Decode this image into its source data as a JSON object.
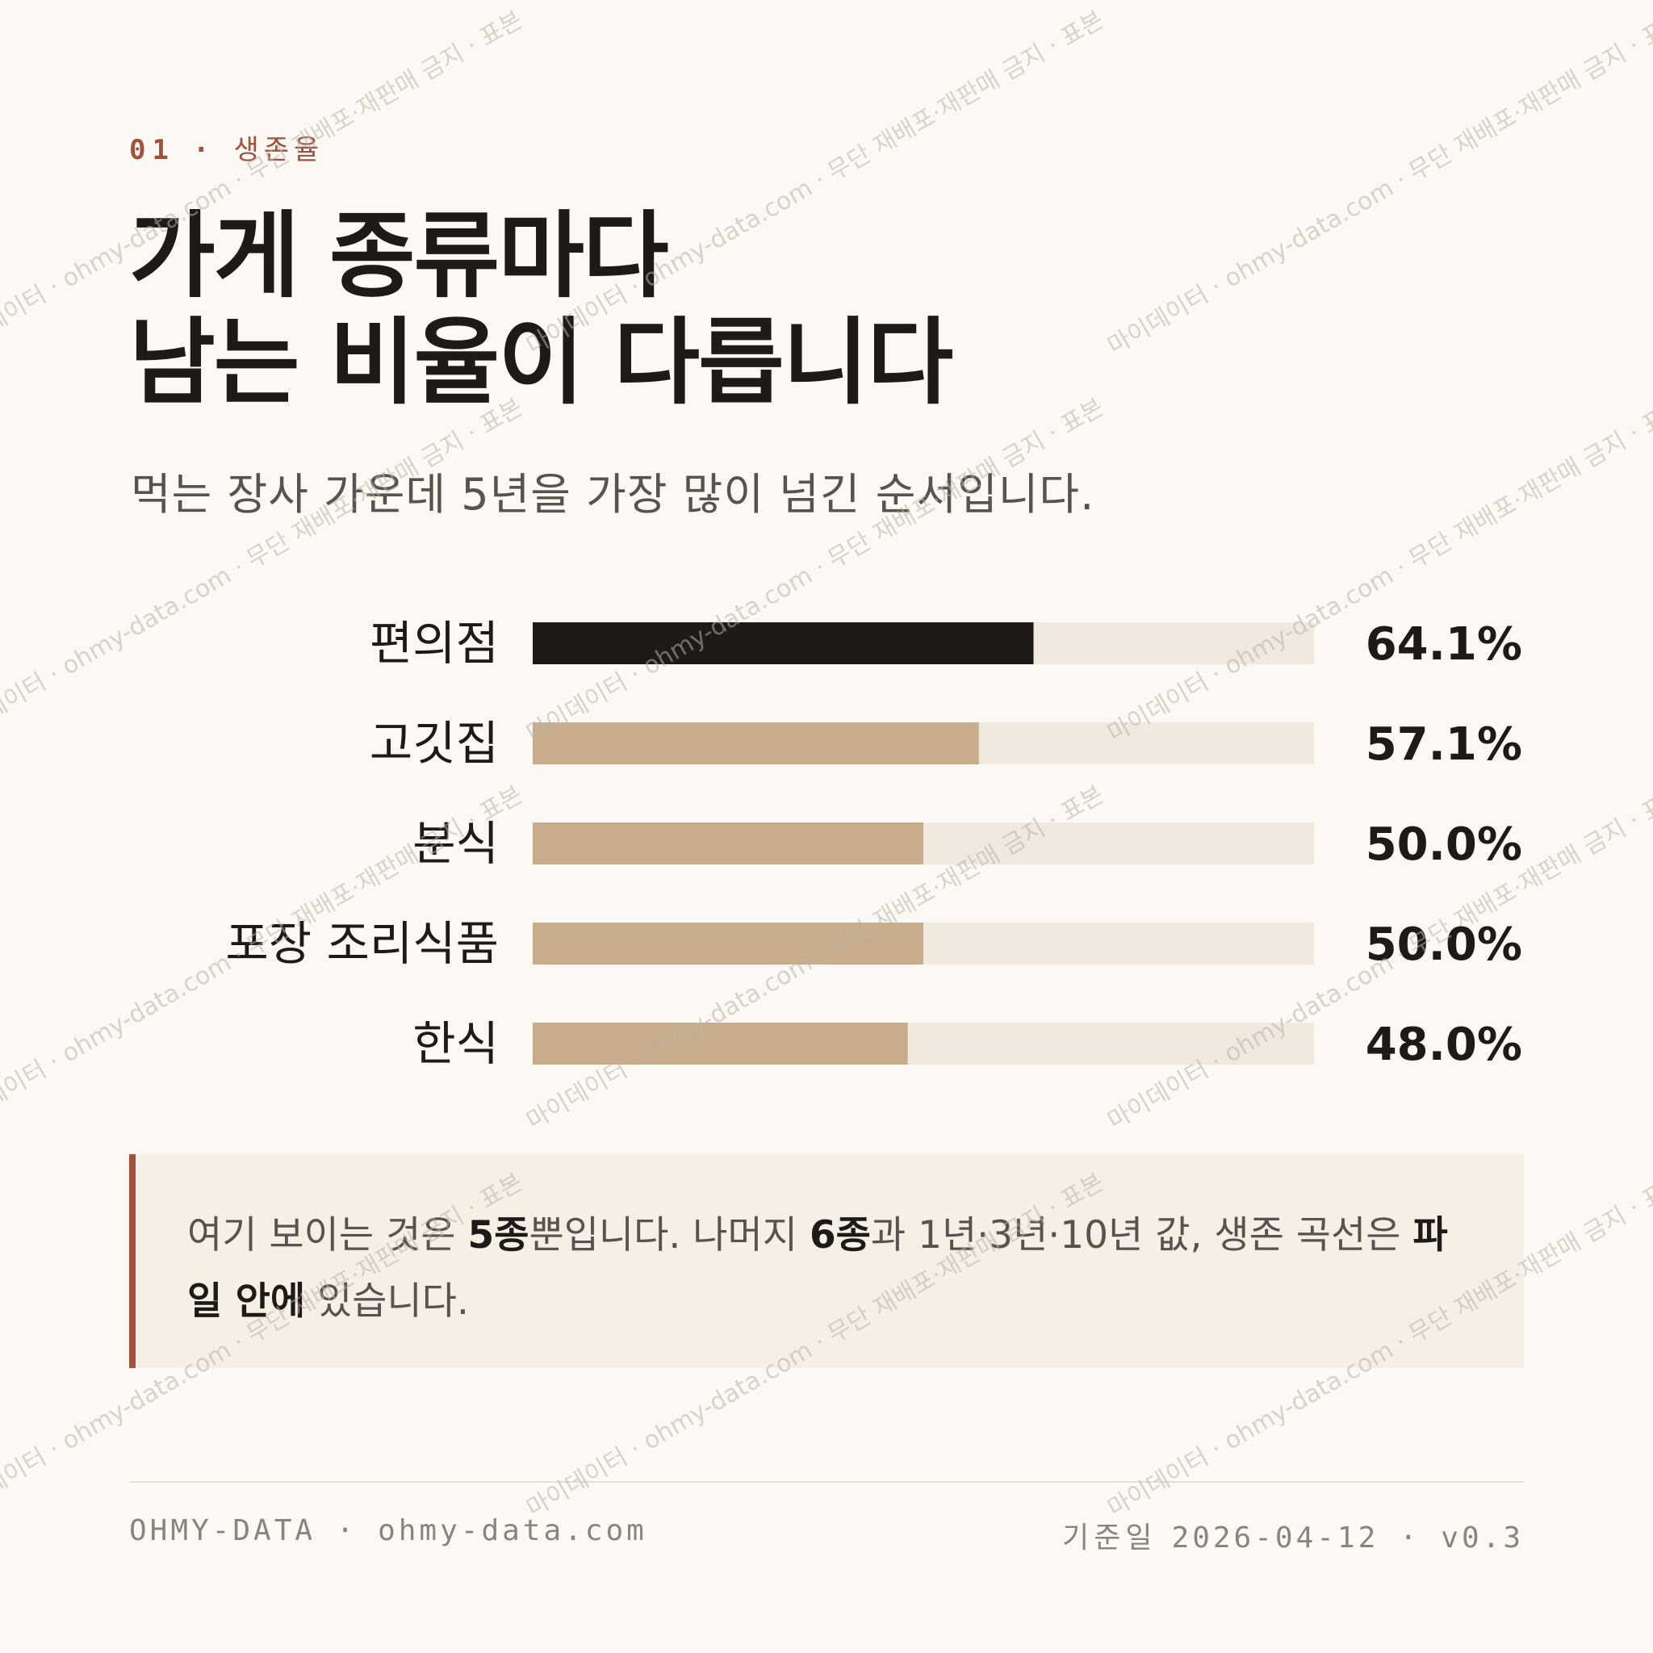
{
  "eyebrow": {
    "number": "01",
    "separator": "·",
    "label": "생존율"
  },
  "title": {
    "line1": "가게 종류마다",
    "line2": "남는 비율이 다릅니다"
  },
  "subtitle": "먹는 장사 가운데 5년을 가장 많이 넘긴 순서입니다.",
  "chart_data": {
    "type": "bar",
    "orientation": "horizontal",
    "categories": [
      "편의점",
      "고깃집",
      "분식",
      "포장 조리식품",
      "한식"
    ],
    "values": [
      64.1,
      57.1,
      50.0,
      50.0,
      48.0
    ],
    "value_labels": [
      "64.1%",
      "57.1%",
      "50.0%",
      "50.0%",
      "48.0%"
    ],
    "xlim": [
      0,
      100
    ],
    "highlight_index": 0,
    "colors": {
      "highlight": "#1e1a17",
      "bar": "#c8ad8c",
      "track": "#f1e9dd"
    },
    "grid": false
  },
  "note": {
    "part1": "여기 보이는 것은 ",
    "bold1": "5종",
    "part2": "뿐입니다. 나머지 ",
    "bold2": "6종",
    "part3": "과 1년·3년·10년 값, 생존 곡선은 ",
    "bold3": "파일 안에",
    "part4": " 있습니다."
  },
  "footer": {
    "brand": "OHMY-DATA · ohmy-data.com",
    "date_label": "기준일",
    "date_value": "2026-04-12 · v0.3"
  },
  "watermark": {
    "text": "마이데이터 · ohmy-data.com · 무단 재배포·재판매 금지 · 표본"
  },
  "colors": {
    "accent": "#a0523c",
    "ink": "#1e1a17",
    "muted": "#5a534d",
    "background": "#fcf9f4"
  }
}
